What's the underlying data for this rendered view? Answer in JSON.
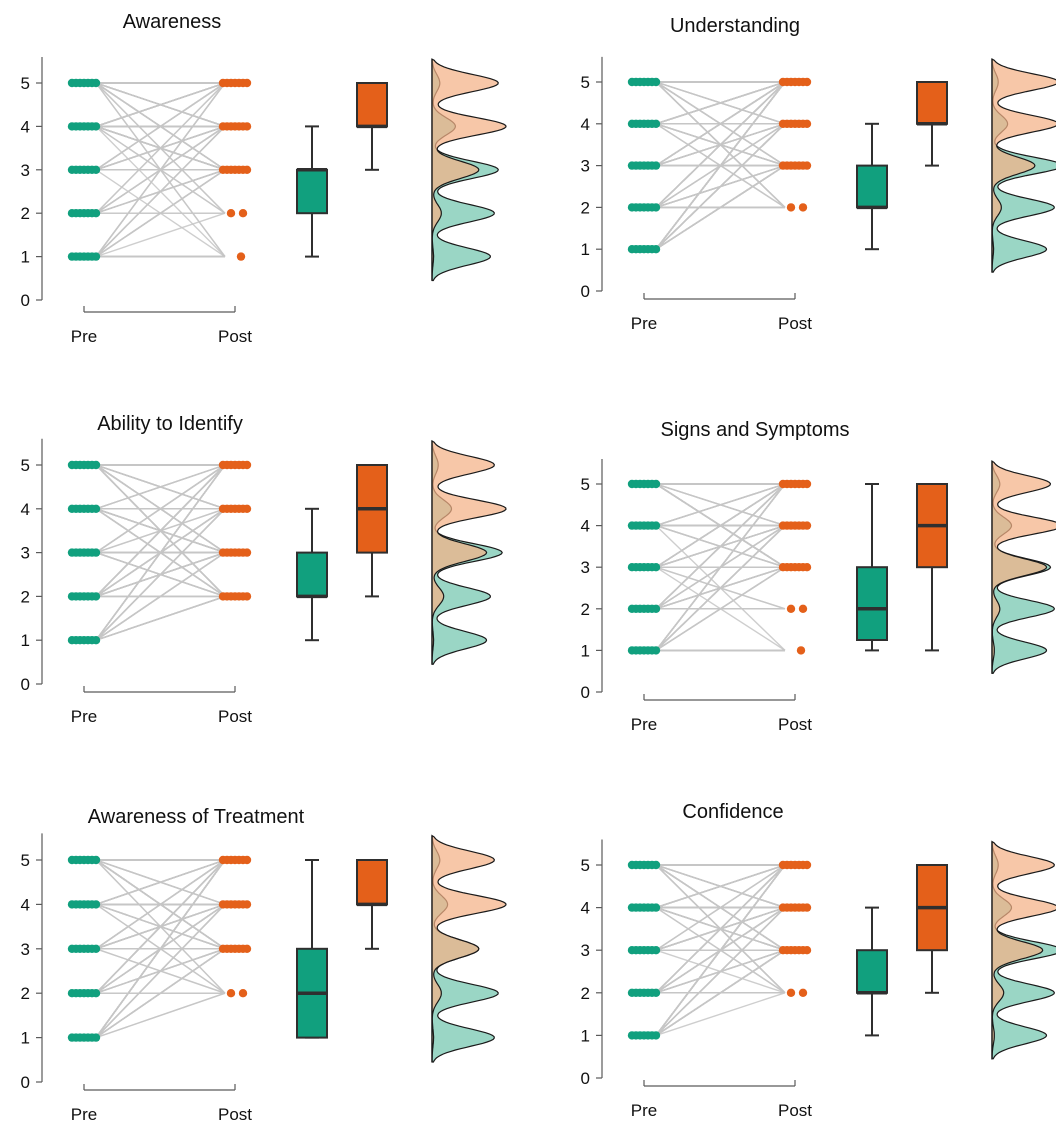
{
  "figure": {
    "y_tick_labels": [
      "0",
      "1",
      "2",
      "3",
      "4",
      "5"
    ],
    "ylim": [
      0,
      5.6
    ]
  },
  "colors": {
    "pre": "#11a07e",
    "post": "#e4601a",
    "pre_fill": "#8fd2bf",
    "post_fill": "#f4b287",
    "overlap_fill": "#b08a4c",
    "line": "#c6c6c6",
    "axis": "#5a5a5a",
    "box_stroke": "#2f2f2f"
  },
  "chart_data": [
    {
      "type": "raincloud",
      "title": "Awareness",
      "categories": [
        "Pre",
        "Post"
      ],
      "ylim": [
        0,
        5.6
      ],
      "pre": {
        "levels": [
          1,
          2,
          3,
          4,
          5
        ],
        "box": {
          "min": 1,
          "q1": 2,
          "median": 3,
          "q3": 3,
          "max": 4
        },
        "outliers": []
      },
      "post": {
        "levels": [
          3,
          4,
          5
        ],
        "box": {
          "min": 3,
          "q1": 4,
          "median": 4,
          "q3": 5,
          "max": 5
        },
        "outliers": [
          1,
          2
        ]
      },
      "pre_density": [
        0.75,
        0.8,
        0.85,
        0.3,
        0.1
      ],
      "post_density": [
        0.02,
        0.12,
        0.6,
        0.95,
        0.85
      ]
    },
    {
      "type": "raincloud",
      "title": "Understanding",
      "categories": [
        "Pre",
        "Post"
      ],
      "ylim": [
        0,
        5.6
      ],
      "pre": {
        "levels": [
          1,
          2,
          3,
          4,
          5
        ],
        "box": {
          "min": 1,
          "q1": 2,
          "median": 2,
          "q3": 3,
          "max": 4
        },
        "outliers": []
      },
      "post": {
        "levels": [
          3,
          4,
          5
        ],
        "box": {
          "min": 3,
          "q1": 4,
          "median": 4,
          "q3": 5,
          "max": 5
        },
        "outliers": [
          2
        ]
      },
      "pre_density": [
        0.7,
        0.8,
        0.9,
        0.2,
        0.08
      ],
      "post_density": [
        0.02,
        0.12,
        0.55,
        0.85,
        0.85
      ]
    },
    {
      "type": "raincloud",
      "title": "Ability to Identify",
      "categories": [
        "Pre",
        "Post"
      ],
      "ylim": [
        0,
        5.6
      ],
      "pre": {
        "levels": [
          1,
          2,
          3,
          4,
          5
        ],
        "box": {
          "min": 1,
          "q1": 2,
          "median": 2,
          "q3": 3,
          "max": 4
        },
        "outliers": []
      },
      "post": {
        "levels": [
          2,
          3,
          4,
          5
        ],
        "box": {
          "min": 2,
          "q1": 3,
          "median": 4,
          "q3": 5,
          "max": 5
        },
        "outliers": []
      },
      "pre_density": [
        0.7,
        0.75,
        0.9,
        0.25,
        0.08
      ],
      "post_density": [
        0.02,
        0.15,
        0.7,
        0.95,
        0.8
      ]
    },
    {
      "type": "raincloud",
      "title": "Signs and Symptoms",
      "categories": [
        "Pre",
        "Post"
      ],
      "ylim": [
        0,
        5.6
      ],
      "pre": {
        "levels": [
          1,
          2,
          3,
          4,
          5
        ],
        "box": {
          "min": 1,
          "q1": 1.25,
          "median": 2,
          "q3": 3,
          "max": 5
        },
        "outliers": []
      },
      "post": {
        "levels": [
          3,
          4,
          5
        ],
        "box": {
          "min": 1,
          "q1": 3,
          "median": 4,
          "q3": 5,
          "max": 5
        },
        "outliers": [
          1,
          2
        ]
      },
      "pre_density": [
        0.7,
        0.8,
        0.75,
        0.25,
        0.1
      ],
      "post_density": [
        0.03,
        0.1,
        0.7,
        0.9,
        0.75
      ]
    },
    {
      "type": "raincloud",
      "title": "Awareness of Treatment",
      "categories": [
        "Pre",
        "Post"
      ],
      "ylim": [
        0,
        5.6
      ],
      "pre": {
        "levels": [
          1,
          2,
          3,
          4,
          5
        ],
        "box": {
          "min": 1,
          "q1": 1,
          "median": 2,
          "q3": 3,
          "max": 5
        },
        "outliers": []
      },
      "post": {
        "levels": [
          3,
          4,
          5
        ],
        "box": {
          "min": 3,
          "q1": 4,
          "median": 4,
          "q3": 5,
          "max": 5
        },
        "outliers": [
          2
        ]
      },
      "pre_density": [
        0.8,
        0.85,
        0.6,
        0.2,
        0.1
      ],
      "post_density": [
        0.02,
        0.12,
        0.6,
        0.95,
        0.8
      ]
    },
    {
      "type": "raincloud",
      "title": "Confidence",
      "categories": [
        "Pre",
        "Post"
      ],
      "ylim": [
        0,
        5.6
      ],
      "pre": {
        "levels": [
          1,
          2,
          3,
          4,
          5
        ],
        "box": {
          "min": 1,
          "q1": 2,
          "median": 2,
          "q3": 3,
          "max": 4
        },
        "outliers": []
      },
      "post": {
        "levels": [
          3,
          4,
          5
        ],
        "box": {
          "min": 2,
          "q1": 3,
          "median": 4,
          "q3": 5,
          "max": 5
        },
        "outliers": [
          2
        ]
      },
      "pre_density": [
        0.7,
        0.8,
        0.9,
        0.25,
        0.08
      ],
      "post_density": [
        0.03,
        0.15,
        0.65,
        0.85,
        0.8
      ]
    }
  ]
}
